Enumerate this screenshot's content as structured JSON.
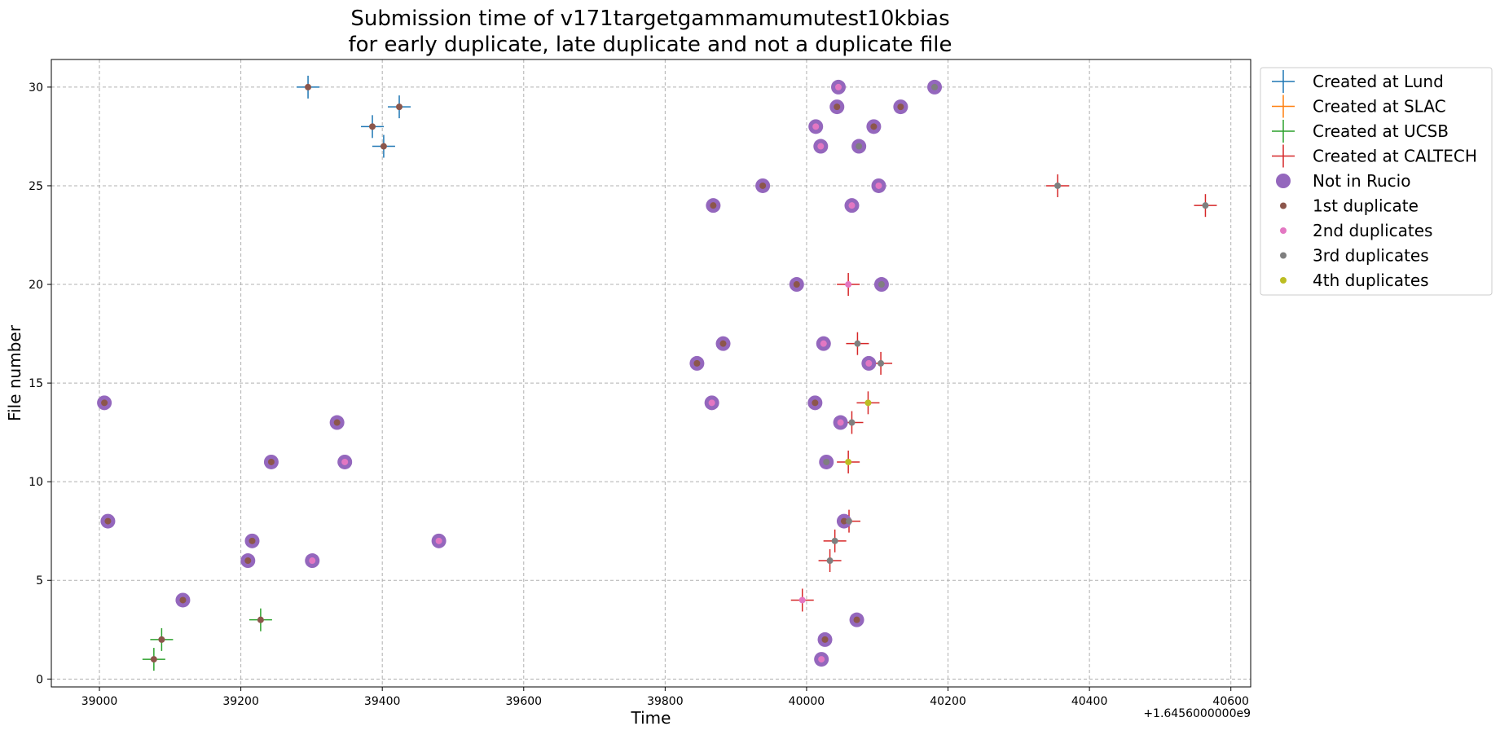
{
  "chart_data": {
    "type": "scatter",
    "title_lines": [
      "Submission time of v171targetgammamumutest10kbias",
      "for early duplicate, late duplicate and not a duplicate file"
    ],
    "xlabel": "Time",
    "ylabel": "File number",
    "x_offset_label": "+1.6456000000e9",
    "x_offset": 1645600000,
    "xlim": [
      38932,
      40628
    ],
    "ylim": [
      -0.4,
      31.4
    ],
    "xticks": [
      39000,
      39200,
      39400,
      39600,
      39800,
      40000,
      40200,
      40400,
      40600
    ],
    "yticks": [
      0,
      5,
      10,
      15,
      20,
      25,
      30
    ],
    "grid": true,
    "legend_position": "outside-upper-right",
    "colors": {
      "lund": "#1f77b4",
      "slac": "#ff7f0e",
      "ucsb": "#2ca02c",
      "caltech": "#d62728",
      "not_in_rucio": "#9467bd",
      "dup1": "#8c564b",
      "dup2": "#e377c2",
      "dup3": "#7f7f7f",
      "dup4": "#bcbd22"
    },
    "legend": [
      {
        "key": "lund",
        "label": "Created at Lund",
        "marker": "plus"
      },
      {
        "key": "slac",
        "label": "Created at SLAC",
        "marker": "plus"
      },
      {
        "key": "ucsb",
        "label": "Created at UCSB",
        "marker": "plus"
      },
      {
        "key": "caltech",
        "label": "Created at CALTECH",
        "marker": "plus"
      },
      {
        "key": "not_in_rucio",
        "label": "Not in Rucio",
        "marker": "big-dot"
      },
      {
        "key": "dup1",
        "label": "1st duplicate",
        "marker": "dot"
      },
      {
        "key": "dup2",
        "label": "2nd duplicates",
        "marker": "dot"
      },
      {
        "key": "dup3",
        "label": "3rd duplicates",
        "marker": "dot"
      },
      {
        "key": "dup4",
        "label": "4th duplicates",
        "marker": "dot"
      }
    ],
    "series": [
      {
        "name": "Created at Lund",
        "key": "lund",
        "points": [
          [
            39295,
            30
          ],
          [
            39386,
            28
          ],
          [
            39402,
            27
          ],
          [
            39424,
            29
          ]
        ]
      },
      {
        "name": "Created at SLAC",
        "key": "slac",
        "points": []
      },
      {
        "name": "Created at UCSB",
        "key": "ucsb",
        "points": [
          [
            39077,
            1
          ],
          [
            39088,
            2
          ],
          [
            39228,
            3
          ]
        ]
      },
      {
        "name": "Created at CALTECH",
        "key": "caltech",
        "points": [
          [
            39994,
            4
          ],
          [
            40033,
            6
          ],
          [
            40040,
            7
          ],
          [
            40060,
            8
          ],
          [
            40059,
            11
          ],
          [
            40064,
            13
          ],
          [
            40087,
            14
          ],
          [
            40105,
            16
          ],
          [
            40072,
            17
          ],
          [
            40059,
            20
          ],
          [
            40355,
            25
          ],
          [
            40564,
            24
          ]
        ]
      },
      {
        "name": "Not in Rucio",
        "key": "not_in_rucio",
        "points": [
          [
            39007,
            14
          ],
          [
            39012,
            8
          ],
          [
            39118,
            4
          ],
          [
            39210,
            6
          ],
          [
            39216,
            7
          ],
          [
            39243,
            11
          ],
          [
            39301,
            6
          ],
          [
            39336,
            13
          ],
          [
            39347,
            11
          ],
          [
            39480,
            7
          ],
          [
            39845,
            16
          ],
          [
            39866,
            14
          ],
          [
            39868,
            24
          ],
          [
            39882,
            17
          ],
          [
            39938,
            25
          ],
          [
            39986,
            20
          ],
          [
            40012,
            14
          ],
          [
            40013,
            28
          ],
          [
            40020,
            27
          ],
          [
            40021,
            1
          ],
          [
            40024,
            17
          ],
          [
            40026,
            2
          ],
          [
            40028,
            11
          ],
          [
            40043,
            29
          ],
          [
            40045,
            30
          ],
          [
            40048,
            13
          ],
          [
            40053,
            8
          ],
          [
            40064,
            24
          ],
          [
            40071,
            3
          ],
          [
            40074,
            27
          ],
          [
            40088,
            16
          ],
          [
            40095,
            28
          ],
          [
            40102,
            25
          ],
          [
            40106,
            20
          ],
          [
            40133,
            29
          ],
          [
            40181,
            30
          ]
        ]
      },
      {
        "name": "1st duplicate",
        "key": "dup1",
        "points": [
          [
            39295,
            30
          ],
          [
            39386,
            28
          ],
          [
            39402,
            27
          ],
          [
            39424,
            29
          ],
          [
            39077,
            1
          ],
          [
            39088,
            2
          ],
          [
            39228,
            3
          ],
          [
            39007,
            14
          ],
          [
            39012,
            8
          ],
          [
            39118,
            4
          ],
          [
            39210,
            6
          ],
          [
            39216,
            7
          ],
          [
            39243,
            11
          ],
          [
            39336,
            13
          ],
          [
            39845,
            16
          ],
          [
            39868,
            24
          ],
          [
            39882,
            17
          ],
          [
            39938,
            25
          ],
          [
            39986,
            20
          ],
          [
            40012,
            14
          ],
          [
            40026,
            2
          ],
          [
            40043,
            29
          ],
          [
            40053,
            8
          ],
          [
            40071,
            3
          ],
          [
            40095,
            28
          ],
          [
            40133,
            29
          ]
        ]
      },
      {
        "name": "2nd duplicates",
        "key": "dup2",
        "points": [
          [
            39301,
            6
          ],
          [
            39347,
            11
          ],
          [
            39480,
            7
          ],
          [
            39866,
            14
          ],
          [
            40013,
            28
          ],
          [
            40020,
            27
          ],
          [
            40021,
            1
          ],
          [
            40024,
            17
          ],
          [
            40045,
            30
          ],
          [
            40048,
            13
          ],
          [
            40064,
            24
          ],
          [
            40088,
            16
          ],
          [
            40102,
            25
          ],
          [
            39994,
            4
          ],
          [
            40059,
            20
          ]
        ]
      },
      {
        "name": "3rd duplicates",
        "key": "dup3",
        "points": [
          [
            40028,
            11
          ],
          [
            40074,
            27
          ],
          [
            40106,
            20
          ],
          [
            40181,
            30
          ],
          [
            40033,
            6
          ],
          [
            40040,
            7
          ],
          [
            40060,
            8
          ],
          [
            40064,
            13
          ],
          [
            40105,
            16
          ],
          [
            40072,
            17
          ],
          [
            40355,
            25
          ],
          [
            40564,
            24
          ]
        ]
      },
      {
        "name": "4th duplicates",
        "key": "dup4",
        "points": [
          [
            40059,
            11
          ],
          [
            40087,
            14
          ]
        ]
      }
    ]
  }
}
